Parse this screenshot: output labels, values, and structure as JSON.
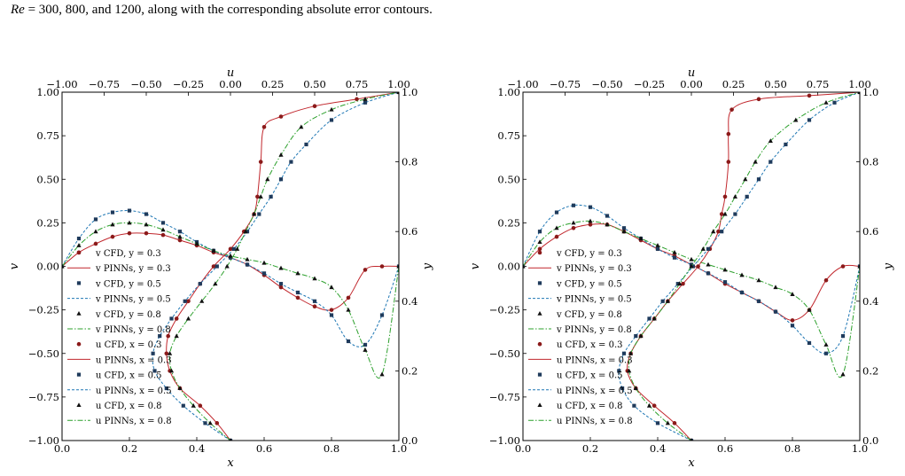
{
  "caption": {
    "re_symbol": "Re",
    "text": " = 300, 800, and 1200, along with the corresponding absolute error contours."
  },
  "colors": {
    "red": "#c1272d",
    "darkred": "#8b1a1a",
    "blue": "#1f77b4",
    "navy": "#1f3b5c",
    "green": "#2ca02c",
    "black": "#111111"
  },
  "chart_data": [
    {
      "type": "line",
      "panel": "left",
      "xlabel": "x",
      "ylabel": "v",
      "top_xlabel": "u",
      "right_ylabel": "y",
      "xlim": [
        0,
        1
      ],
      "ylim": [
        -1,
        1
      ],
      "top_xlim": [
        -1,
        1
      ],
      "right_ylim": [
        0,
        1
      ],
      "x_ticks": [
        "0.0",
        "0.2",
        "0.4",
        "0.6",
        "0.8",
        "1.0"
      ],
      "y_ticks": [
        "−1.00",
        "−0.75",
        "−0.50",
        "−0.25",
        "0.00",
        "0.25",
        "0.50",
        "0.75",
        "1.00"
      ],
      "top_ticks": [
        "−1.00",
        "−0.75",
        "−0.50",
        "−0.25",
        "0.00",
        "0.25",
        "0.50",
        "0.75",
        "1.00"
      ],
      "right_ticks": [
        "0.0",
        "0.2",
        "0.4",
        "0.6",
        "0.8",
        "1.0"
      ],
      "legend": [
        "v CFD, y = 0.3",
        "v PINNs, y = 0.3",
        "v CFD, y = 0.5",
        "v PINNs, y = 0.5",
        "v CFD, y = 0.8",
        "v PINNs, y = 0.8",
        "u CFD, x = 0.3",
        "u PINNs, x = 0.3",
        "u CFD, x = 0.5",
        "u PINNs, x = 0.5",
        "u CFD, x = 0.8",
        "u PINNs, x = 0.8"
      ],
      "legend_position": "lower-left",
      "v_profiles": [
        {
          "name": "y = 0.3",
          "color": "red",
          "x": [
            0,
            0.05,
            0.1,
            0.15,
            0.2,
            0.25,
            0.3,
            0.35,
            0.4,
            0.45,
            0.5,
            0.55,
            0.6,
            0.65,
            0.7,
            0.75,
            0.8,
            0.85,
            0.9,
            0.95,
            1.0
          ],
          "y": [
            0,
            0.08,
            0.13,
            0.17,
            0.19,
            0.19,
            0.18,
            0.15,
            0.12,
            0.08,
            0.05,
            0.01,
            -0.05,
            -0.12,
            -0.18,
            -0.23,
            -0.25,
            -0.18,
            -0.02,
            0.0,
            0
          ]
        },
        {
          "name": "y = 0.5",
          "color": "blue",
          "x": [
            0,
            0.05,
            0.1,
            0.15,
            0.2,
            0.25,
            0.3,
            0.35,
            0.4,
            0.45,
            0.5,
            0.55,
            0.6,
            0.65,
            0.7,
            0.75,
            0.8,
            0.85,
            0.9,
            0.95,
            1.0
          ],
          "y": [
            0,
            0.16,
            0.27,
            0.31,
            0.32,
            0.3,
            0.25,
            0.2,
            0.14,
            0.09,
            0.05,
            0.01,
            -0.04,
            -0.1,
            -0.15,
            -0.2,
            -0.28,
            -0.43,
            -0.45,
            -0.28,
            0
          ]
        },
        {
          "name": "y = 0.8",
          "color": "green",
          "x": [
            0,
            0.05,
            0.1,
            0.15,
            0.2,
            0.25,
            0.3,
            0.35,
            0.4,
            0.45,
            0.5,
            0.55,
            0.6,
            0.65,
            0.7,
            0.75,
            0.8,
            0.85,
            0.9,
            0.95,
            1.0
          ],
          "y": [
            0,
            0.12,
            0.2,
            0.24,
            0.25,
            0.24,
            0.21,
            0.17,
            0.13,
            0.09,
            0.06,
            0.04,
            0.02,
            -0.01,
            -0.04,
            -0.07,
            -0.12,
            -0.25,
            -0.48,
            -0.62,
            0
          ]
        }
      ],
      "u_profiles": [
        {
          "name": "x = 0.3",
          "color": "red",
          "u": [
            0,
            -0.08,
            -0.18,
            -0.3,
            -0.36,
            -0.38,
            -0.37,
            -0.32,
            -0.25,
            -0.18,
            -0.1,
            0.0,
            0.08,
            0.14,
            0.16,
            0.18,
            0.2,
            0.3,
            0.5,
            0.75,
            1.0
          ],
          "y": [
            0,
            0.05,
            0.1,
            0.15,
            0.2,
            0.25,
            0.3,
            0.35,
            0.4,
            0.45,
            0.5,
            0.55,
            0.6,
            0.65,
            0.7,
            0.8,
            0.9,
            0.93,
            0.96,
            0.98,
            1.0
          ]
        },
        {
          "name": "x = 0.5",
          "color": "blue",
          "u": [
            0,
            -0.15,
            -0.28,
            -0.38,
            -0.45,
            -0.46,
            -0.42,
            -0.35,
            -0.27,
            -0.18,
            -0.08,
            0.02,
            0.1,
            0.17,
            0.24,
            0.3,
            0.36,
            0.45,
            0.6,
            0.8,
            1.0
          ],
          "y": [
            0,
            0.05,
            0.1,
            0.15,
            0.2,
            0.25,
            0.3,
            0.35,
            0.4,
            0.45,
            0.5,
            0.55,
            0.6,
            0.65,
            0.7,
            0.75,
            0.8,
            0.85,
            0.92,
            0.97,
            1.0
          ]
        },
        {
          "name": "x = 0.8",
          "color": "green",
          "u": [
            0,
            -0.12,
            -0.22,
            -0.3,
            -0.35,
            -0.36,
            -0.32,
            -0.25,
            -0.17,
            -0.09,
            -0.02,
            0.04,
            0.09,
            0.14,
            0.18,
            0.22,
            0.3,
            0.42,
            0.6,
            0.8,
            1.0
          ],
          "y": [
            0,
            0.05,
            0.1,
            0.15,
            0.2,
            0.25,
            0.3,
            0.35,
            0.4,
            0.45,
            0.5,
            0.55,
            0.6,
            0.65,
            0.7,
            0.75,
            0.82,
            0.9,
            0.95,
            0.98,
            1.0
          ]
        }
      ]
    },
    {
      "type": "line",
      "panel": "right",
      "xlabel": "x",
      "ylabel": "v",
      "top_xlabel": "u",
      "right_ylabel": "y",
      "xlim": [
        0,
        1
      ],
      "ylim": [
        -1,
        1
      ],
      "top_xlim": [
        -1,
        1
      ],
      "right_ylim": [
        0,
        1
      ],
      "x_ticks": [
        "0.0",
        "0.2",
        "0.4",
        "0.6",
        "0.8",
        "1.0"
      ],
      "y_ticks": [
        "−1.00",
        "−0.75",
        "−0.50",
        "−0.25",
        "0.00",
        "0.25",
        "0.50",
        "0.75",
        "1.00"
      ],
      "top_ticks": [
        "−1.00",
        "−0.75",
        "−0.50",
        "−0.25",
        "0.00",
        "0.25",
        "0.50",
        "0.75",
        "1.00"
      ],
      "right_ticks": [
        "0.0",
        "0.2",
        "0.4",
        "0.6",
        "0.8",
        "1.0"
      ],
      "legend": [
        "v CFD, y = 0.3",
        "v PINNs, y = 0.3",
        "v CFD, y = 0.5",
        "v PINNs, y = 0.5",
        "v CFD, y = 0.8",
        "v PINNs, y = 0.8",
        "u CFD, x = 0.3",
        "u PINNs, x = 0.3",
        "u CFD, x = 0.5",
        "u PINNs, x = 0.5",
        "u CFD, x = 0.8",
        "u PINNs, x = 0.8"
      ],
      "legend_position": "lower-left",
      "v_profiles": [
        {
          "name": "y = 0.3",
          "color": "red",
          "x": [
            0,
            0.05,
            0.1,
            0.15,
            0.2,
            0.25,
            0.3,
            0.35,
            0.4,
            0.45,
            0.5,
            0.55,
            0.6,
            0.65,
            0.7,
            0.75,
            0.8,
            0.85,
            0.9,
            0.95,
            1.0
          ],
          "y": [
            0,
            0.1,
            0.17,
            0.22,
            0.24,
            0.24,
            0.2,
            0.15,
            0.1,
            0.06,
            0.01,
            -0.04,
            -0.1,
            -0.15,
            -0.2,
            -0.26,
            -0.31,
            -0.25,
            -0.08,
            0.0,
            0
          ]
        },
        {
          "name": "y = 0.5",
          "color": "blue",
          "x": [
            0,
            0.05,
            0.1,
            0.15,
            0.2,
            0.25,
            0.3,
            0.35,
            0.4,
            0.45,
            0.5,
            0.55,
            0.6,
            0.65,
            0.7,
            0.75,
            0.8,
            0.85,
            0.9,
            0.95,
            1.0
          ],
          "y": [
            0,
            0.2,
            0.31,
            0.35,
            0.34,
            0.29,
            0.22,
            0.16,
            0.1,
            0.05,
            0.01,
            -0.04,
            -0.09,
            -0.15,
            -0.2,
            -0.26,
            -0.34,
            -0.44,
            -0.5,
            -0.4,
            0
          ]
        },
        {
          "name": "y = 0.8",
          "color": "green",
          "x": [
            0,
            0.05,
            0.1,
            0.15,
            0.2,
            0.25,
            0.3,
            0.35,
            0.4,
            0.45,
            0.5,
            0.55,
            0.6,
            0.65,
            0.7,
            0.75,
            0.8,
            0.85,
            0.9,
            0.95,
            1.0
          ],
          "y": [
            0,
            0.14,
            0.22,
            0.25,
            0.26,
            0.24,
            0.2,
            0.16,
            0.12,
            0.08,
            0.04,
            0.01,
            -0.02,
            -0.05,
            -0.08,
            -0.12,
            -0.16,
            -0.25,
            -0.45,
            -0.62,
            0
          ]
        }
      ],
      "u_profiles": [
        {
          "name": "x = 0.3",
          "color": "red",
          "u": [
            0,
            -0.1,
            -0.22,
            -0.33,
            -0.38,
            -0.36,
            -0.3,
            -0.22,
            -0.14,
            -0.05,
            0.04,
            0.11,
            0.16,
            0.18,
            0.2,
            0.22,
            0.22,
            0.24,
            0.4,
            0.7,
            1.0
          ],
          "y": [
            0,
            0.05,
            0.1,
            0.15,
            0.2,
            0.25,
            0.3,
            0.35,
            0.4,
            0.45,
            0.5,
            0.55,
            0.6,
            0.65,
            0.7,
            0.8,
            0.88,
            0.95,
            0.98,
            0.99,
            1.0
          ]
        },
        {
          "name": "x = 0.5",
          "color": "blue",
          "u": [
            0,
            -0.2,
            -0.34,
            -0.41,
            -0.43,
            -0.4,
            -0.33,
            -0.25,
            -0.17,
            -0.08,
            0.01,
            0.1,
            0.18,
            0.26,
            0.33,
            0.4,
            0.47,
            0.56,
            0.7,
            0.85,
            1.0
          ],
          "y": [
            0,
            0.05,
            0.1,
            0.15,
            0.2,
            0.25,
            0.3,
            0.35,
            0.4,
            0.45,
            0.5,
            0.55,
            0.6,
            0.65,
            0.7,
            0.75,
            0.8,
            0.85,
            0.92,
            0.97,
            1.0
          ]
        },
        {
          "name": "x = 0.8",
          "color": "green",
          "u": [
            0,
            -0.14,
            -0.25,
            -0.33,
            -0.37,
            -0.36,
            -0.3,
            -0.22,
            -0.14,
            -0.07,
            0.0,
            0.07,
            0.13,
            0.2,
            0.26,
            0.32,
            0.38,
            0.47,
            0.62,
            0.8,
            1.0
          ],
          "y": [
            0,
            0.05,
            0.1,
            0.15,
            0.2,
            0.25,
            0.3,
            0.35,
            0.4,
            0.45,
            0.5,
            0.55,
            0.6,
            0.65,
            0.7,
            0.75,
            0.8,
            0.86,
            0.92,
            0.97,
            1.0
          ]
        }
      ]
    }
  ]
}
